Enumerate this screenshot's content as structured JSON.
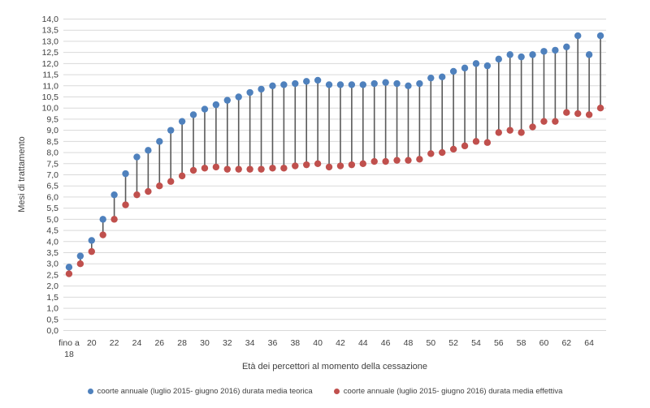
{
  "chart": {
    "y_axis_title": "Mesi di trattamento",
    "x_axis_title": "Età dei percettori al momento della cessazione"
  },
  "chart_data": {
    "type": "scatter",
    "subtype": "vertical-dumbbell",
    "title": "",
    "xlabel": "Età dei percettori al momento della cessazione",
    "ylabel": "Mesi di trattamento",
    "categories": [
      "fino a 18",
      "19",
      "20",
      "21",
      "22",
      "23",
      "24",
      "25",
      "26",
      "27",
      "28",
      "29",
      "30",
      "31",
      "32",
      "33",
      "34",
      "35",
      "36",
      "37",
      "38",
      "39",
      "40",
      "41",
      "42",
      "43",
      "44",
      "45",
      "46",
      "47",
      "48",
      "49",
      "50",
      "51",
      "52",
      "53",
      "54",
      "55",
      "56",
      "57",
      "58",
      "59",
      "60",
      "61",
      "62",
      "63",
      "64",
      "65"
    ],
    "x_tick_labels_shown": [
      "fino a 18",
      "20",
      "22",
      "24",
      "26",
      "28",
      "30",
      "32",
      "34",
      "36",
      "38",
      "40",
      "42",
      "44",
      "46",
      "48",
      "50",
      "52",
      "54",
      "56",
      "58",
      "60",
      "62",
      "64"
    ],
    "series": [
      {
        "name": "coorte annuale (luglio 2015- giugno 2016) durata media teorica",
        "color": "#4F81BD",
        "values": [
          2.85,
          3.35,
          4.05,
          5.0,
          6.1,
          7.05,
          7.8,
          8.1,
          8.5,
          9.0,
          9.4,
          9.7,
          9.95,
          10.15,
          10.35,
          10.5,
          10.7,
          10.85,
          11.0,
          11.05,
          11.1,
          11.2,
          11.25,
          11.05,
          11.05,
          11.05,
          11.05,
          11.1,
          11.15,
          11.1,
          11.0,
          11.1,
          11.35,
          11.4,
          11.65,
          11.8,
          12.0,
          11.9,
          12.2,
          12.4,
          12.3,
          12.4,
          12.55,
          12.6,
          12.75,
          13.25,
          12.4,
          13.25
        ]
      },
      {
        "name": "coorte annuale (luglio 2015- giugno 2016) durata media effettiva",
        "color": "#C0504D",
        "values": [
          2.55,
          3.0,
          3.55,
          4.3,
          5.0,
          5.65,
          6.1,
          6.25,
          6.5,
          6.7,
          6.95,
          7.2,
          7.3,
          7.35,
          7.25,
          7.25,
          7.25,
          7.25,
          7.3,
          7.3,
          7.4,
          7.45,
          7.5,
          7.35,
          7.4,
          7.45,
          7.5,
          7.6,
          7.6,
          7.65,
          7.65,
          7.7,
          7.95,
          8.0,
          8.15,
          8.3,
          8.5,
          8.45,
          8.9,
          9.0,
          8.9,
          9.15,
          9.4,
          9.4,
          9.8,
          9.75,
          9.7,
          10.0
        ]
      }
    ],
    "ylim": [
      0,
      14
    ],
    "y_tick_step": 0.5,
    "y_tick_decimal_separator": ",",
    "grid": "horizontal",
    "gridline_color": "#D9D9D9",
    "connector_color": "#595959",
    "text_color": "#404040",
    "legend_position": "bottom"
  }
}
